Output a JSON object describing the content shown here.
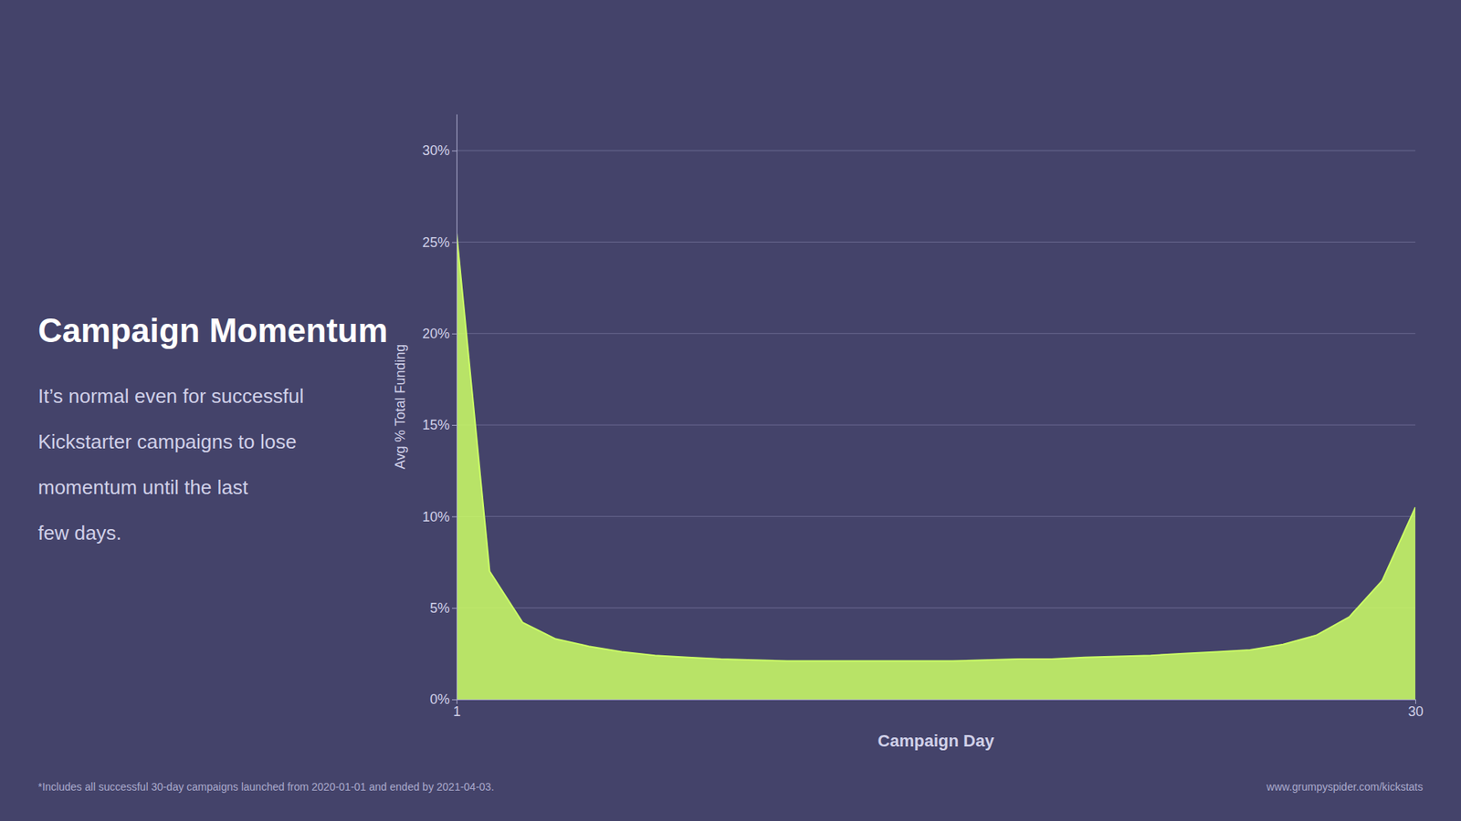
{
  "chart_data": {
    "type": "area",
    "title": "Campaign Momentum",
    "subtitle": [
      "It’s normal even for successful",
      "Kickstarter campaigns to lose",
      "momentum until the last",
      "few days."
    ],
    "annotations": [
      "*Includes all successful 30-day campaigns launched from 2020-01-01  and ended by 2021-04-03.",
      "www.grumpyspider.com/kickstats"
    ],
    "xlabel": "Campaign Day",
    "ylabel": "Avg % Total Funding",
    "x": [
      1,
      2,
      3,
      4,
      5,
      6,
      7,
      8,
      9,
      10,
      11,
      12,
      13,
      14,
      15,
      16,
      17,
      18,
      19,
      20,
      21,
      22,
      23,
      24,
      25,
      26,
      27,
      28,
      29,
      30
    ],
    "values": [
      25.5,
      7.0,
      4.2,
      3.3,
      2.9,
      2.6,
      2.4,
      2.3,
      2.2,
      2.15,
      2.1,
      2.1,
      2.1,
      2.1,
      2.1,
      2.1,
      2.15,
      2.2,
      2.2,
      2.3,
      2.35,
      2.4,
      2.5,
      2.6,
      2.7,
      3.0,
      3.5,
      4.5,
      6.5,
      10.5
    ],
    "color": "#ccff66",
    "xlim": [
      1,
      30
    ],
    "xticks": [
      1,
      30
    ],
    "ylim": [
      0,
      32
    ],
    "yticks": [
      {
        "value": 0,
        "label": "0%"
      },
      {
        "value": 5,
        "label": "5%"
      },
      {
        "value": 10,
        "label": "10%"
      },
      {
        "value": 15,
        "label": "15%"
      },
      {
        "value": 20,
        "label": "20%"
      },
      {
        "value": 25,
        "label": "25%"
      },
      {
        "value": 30,
        "label": "30%"
      }
    ],
    "grid": true
  }
}
